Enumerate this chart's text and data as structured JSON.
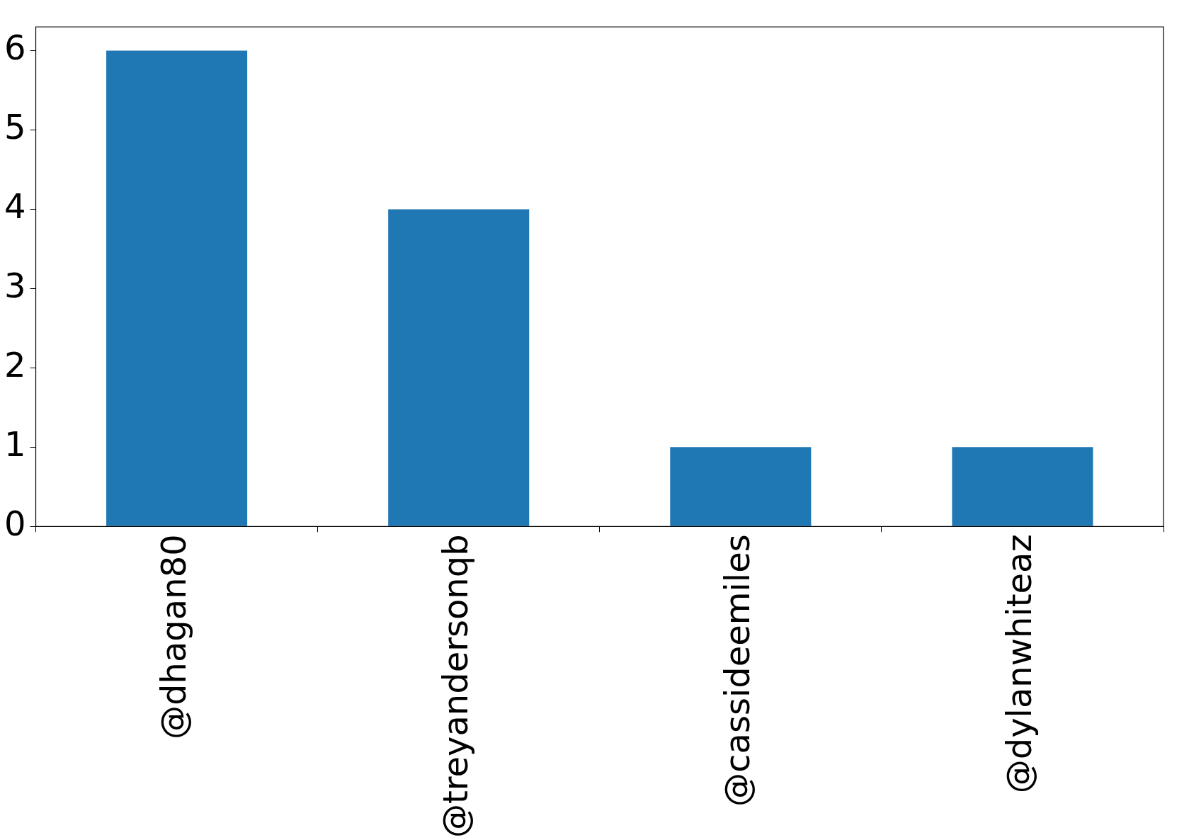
{
  "chart_data": {
    "type": "bar",
    "categories": [
      "@dhagan80",
      "@treyandersonqb",
      "@cassideemiles",
      "@dylanwhiteaz"
    ],
    "values": [
      6,
      4,
      1,
      1
    ],
    "color": "#1f77b4",
    "ylim": [
      0,
      6.3
    ],
    "yticks": [
      0,
      1,
      2,
      3,
      4,
      5,
      6
    ],
    "legend": false
  }
}
